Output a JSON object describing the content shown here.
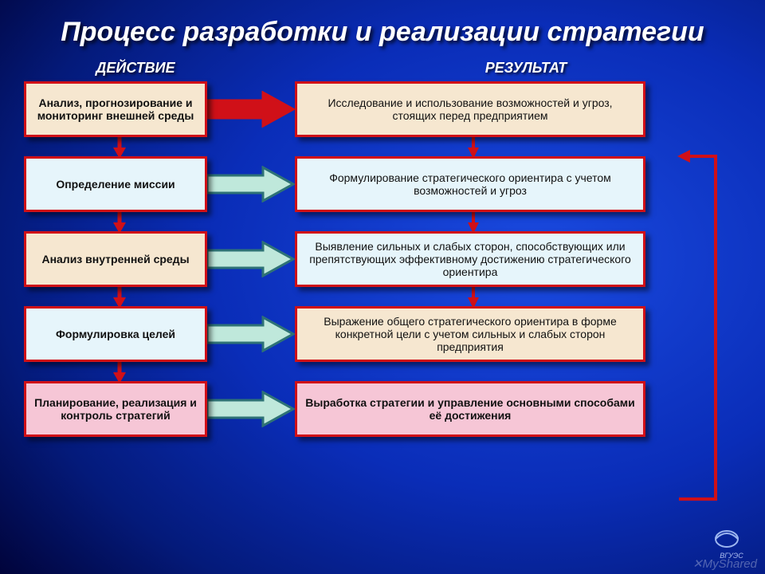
{
  "title": "Процесс разработки и реализации стратегии",
  "columns": {
    "action": "ДЕЙСТВИЕ",
    "result": "РЕЗУЛЬТАТ"
  },
  "colors": {
    "title_color": "#ffffff",
    "border_red": "#d01018",
    "fill_beige": "#f6e7d0",
    "fill_lightblue": "#e6f5fb",
    "fill_pink": "#f6c6d6",
    "arrow_red": "#d01018",
    "arrow_teal_out": "#2e7276",
    "arrow_teal_in": "#bfe8db",
    "feedback_red": "#d01018"
  },
  "rows": [
    {
      "action": "Анализ, прогнозирование и мониторинг внешней среды",
      "action_fill": "#f6e7d0",
      "result": "Исследование и использование возможностей и угроз, стоящих перед предприятием",
      "result_fill": "#f6e7d0",
      "h_arrow_color": "#d01018",
      "h_arrow_fill": "#d01018"
    },
    {
      "action": "Определение миссии",
      "action_fill": "#e6f5fb",
      "result": "Формулирование стратегического ориентира с учетом возможностей и угроз",
      "result_fill": "#e6f5fb",
      "h_arrow_color": "#2e7276",
      "h_arrow_fill": "#bfe8db"
    },
    {
      "action": "Анализ внутренней среды",
      "action_fill": "#f6e7d0",
      "result": "Выявление сильных и слабых сторон, способствующих или препятствующих эффективному достижению стратегического ориентира",
      "result_fill": "#e6f5fb",
      "h_arrow_color": "#2e7276",
      "h_arrow_fill": "#bfe8db"
    },
    {
      "action": "Формулировка целей",
      "action_fill": "#e6f5fb",
      "result": "Выражение общего стратегического ориентира в форме конкретной цели с учетом сильных и слабых сторон предприятия",
      "result_fill": "#f6e7d0",
      "h_arrow_color": "#2e7276",
      "h_arrow_fill": "#bfe8db"
    },
    {
      "action": "Планирование, реализация и контроль стратегий",
      "action_fill": "#f6c6d6",
      "result": "Выработка стратегии и управление основными способами её достижения",
      "result_fill": "#f6c6d6",
      "result_bold": true,
      "h_arrow_color": "#2e7276",
      "h_arrow_fill": "#bfe8db"
    }
  ],
  "left_v_arrows_between": [
    0,
    1,
    2,
    3
  ],
  "right_v_arrows_between": [
    0,
    1,
    2
  ],
  "watermark": "✕MyShared",
  "logo_text": "ВГУЭС"
}
